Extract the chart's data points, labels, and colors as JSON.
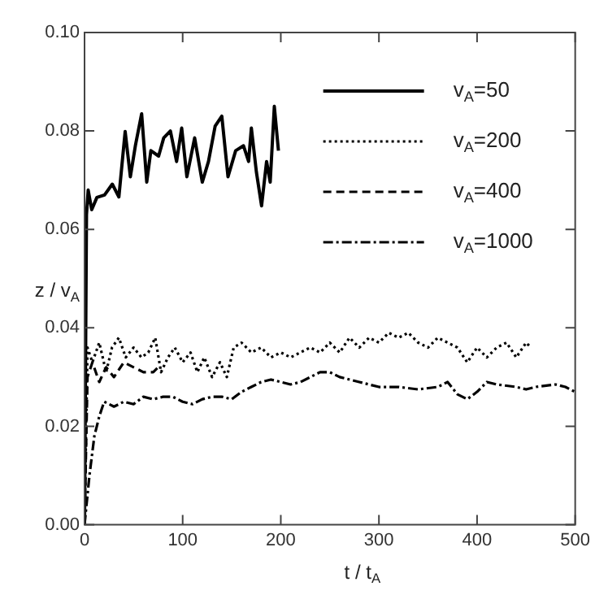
{
  "chart_data": {
    "type": "line",
    "xlabel": "t / t$_{A}$",
    "ylabel": "z / v$_{A}$",
    "xlim": [
      0,
      500
    ],
    "xticks": [
      0,
      100,
      200,
      300,
      400,
      500
    ],
    "ylim": [
      0,
      0.1
    ],
    "yticks": [
      {
        "value": 0,
        "label": "0.00"
      },
      {
        "value": 0.02,
        "label": "0.02"
      },
      {
        "value": 0.04,
        "label": "0.04"
      },
      {
        "value": 0.06,
        "label": "0.06"
      },
      {
        "value": 0.08,
        "label": "0.08"
      },
      {
        "value": 0.1,
        "label": "0.10"
      }
    ],
    "grid": false,
    "legend": "top right",
    "marker": "none",
    "series": [
      {
        "name": "v$_{A}$=50",
        "color": "#000000",
        "line_style": "solid",
        "x": [
          0,
          2,
          3.7,
          7.3,
          12.6,
          20.4,
          28.3,
          35,
          41.4,
          46.7,
          51.9,
          58.2,
          63.4,
          67.6,
          75.5,
          80.7,
          87.5,
          93.8,
          99,
          104.3,
          112.2,
          120,
          126.3,
          133.1,
          139.9,
          146.2,
          154,
          162,
          167.2,
          170,
          175.1,
          180.4,
          185.5,
          189.2,
          193.4,
          197.6
        ],
        "values": [
          0,
          0.063,
          0.068,
          0.064,
          0.0665,
          0.067,
          0.0692,
          0.0666,
          0.0799,
          0.0707,
          0.0771,
          0.0835,
          0.0696,
          0.076,
          0.0749,
          0.0786,
          0.08,
          0.0738,
          0.0806,
          0.0707,
          0.0786,
          0.0696,
          0.0738,
          0.081,
          0.083,
          0.0707,
          0.076,
          0.077,
          0.0738,
          0.0806,
          0.0717,
          0.0648,
          0.0738,
          0.0696,
          0.085,
          0.076
        ]
      },
      {
        "name": "v$_{A}$=200",
        "color": "#000000",
        "line_style": "dotted",
        "x": [
          0,
          3,
          8,
          15,
          22,
          28,
          35,
          42,
          50,
          58,
          65,
          72,
          78,
          85,
          92,
          100,
          108,
          115,
          122,
          130,
          138,
          145,
          152,
          160,
          170,
          180,
          190,
          200,
          210,
          220,
          230,
          240,
          250,
          260,
          270,
          280,
          290,
          300,
          310,
          320,
          330,
          340,
          350,
          360,
          370,
          380,
          390,
          400,
          410,
          420,
          430,
          440,
          450,
          455
        ],
        "values": [
          0,
          0.036,
          0.033,
          0.037,
          0.031,
          0.036,
          0.038,
          0.034,
          0.036,
          0.034,
          0.035,
          0.038,
          0.031,
          0.034,
          0.036,
          0.033,
          0.035,
          0.031,
          0.034,
          0.03,
          0.033,
          0.03,
          0.036,
          0.037,
          0.035,
          0.036,
          0.034,
          0.035,
          0.034,
          0.035,
          0.036,
          0.035,
          0.037,
          0.035,
          0.038,
          0.036,
          0.038,
          0.037,
          0.039,
          0.038,
          0.039,
          0.037,
          0.036,
          0.038,
          0.037,
          0.036,
          0.033,
          0.036,
          0.034,
          0.036,
          0.037,
          0.034,
          0.037,
          0.036
        ]
      },
      {
        "name": "v$_{A}$=400",
        "color": "#000000",
        "line_style": "dashed",
        "x": [
          0,
          3,
          8,
          15,
          22,
          30,
          40,
          50,
          60,
          70,
          75
        ],
        "values": [
          0,
          0.03,
          0.033,
          0.029,
          0.032,
          0.03,
          0.033,
          0.032,
          0.031,
          0.031,
          0.032
        ]
      },
      {
        "name": "v$_{A}$=1000",
        "color": "#000000",
        "line_style": "dashdot",
        "x": [
          0,
          5,
          10,
          15,
          20,
          30,
          40,
          50,
          60,
          70,
          80,
          90,
          100,
          110,
          120,
          130,
          140,
          150,
          160,
          170,
          180,
          190,
          200,
          210,
          220,
          230,
          240,
          250,
          260,
          280,
          290,
          300,
          320,
          340,
          360,
          370,
          380,
          390,
          400,
          410,
          420,
          440,
          450,
          460,
          480,
          490,
          500
        ],
        "values": [
          0,
          0.01,
          0.018,
          0.022,
          0.025,
          0.024,
          0.025,
          0.0245,
          0.026,
          0.0255,
          0.026,
          0.026,
          0.025,
          0.0245,
          0.0255,
          0.026,
          0.026,
          0.0255,
          0.027,
          0.028,
          0.029,
          0.0295,
          0.029,
          0.0285,
          0.029,
          0.03,
          0.031,
          0.031,
          0.03,
          0.029,
          0.0285,
          0.028,
          0.028,
          0.0275,
          0.028,
          0.029,
          0.0265,
          0.0255,
          0.027,
          0.029,
          0.0285,
          0.028,
          0.0275,
          0.028,
          0.0285,
          0.028,
          0.027
        ]
      }
    ]
  }
}
